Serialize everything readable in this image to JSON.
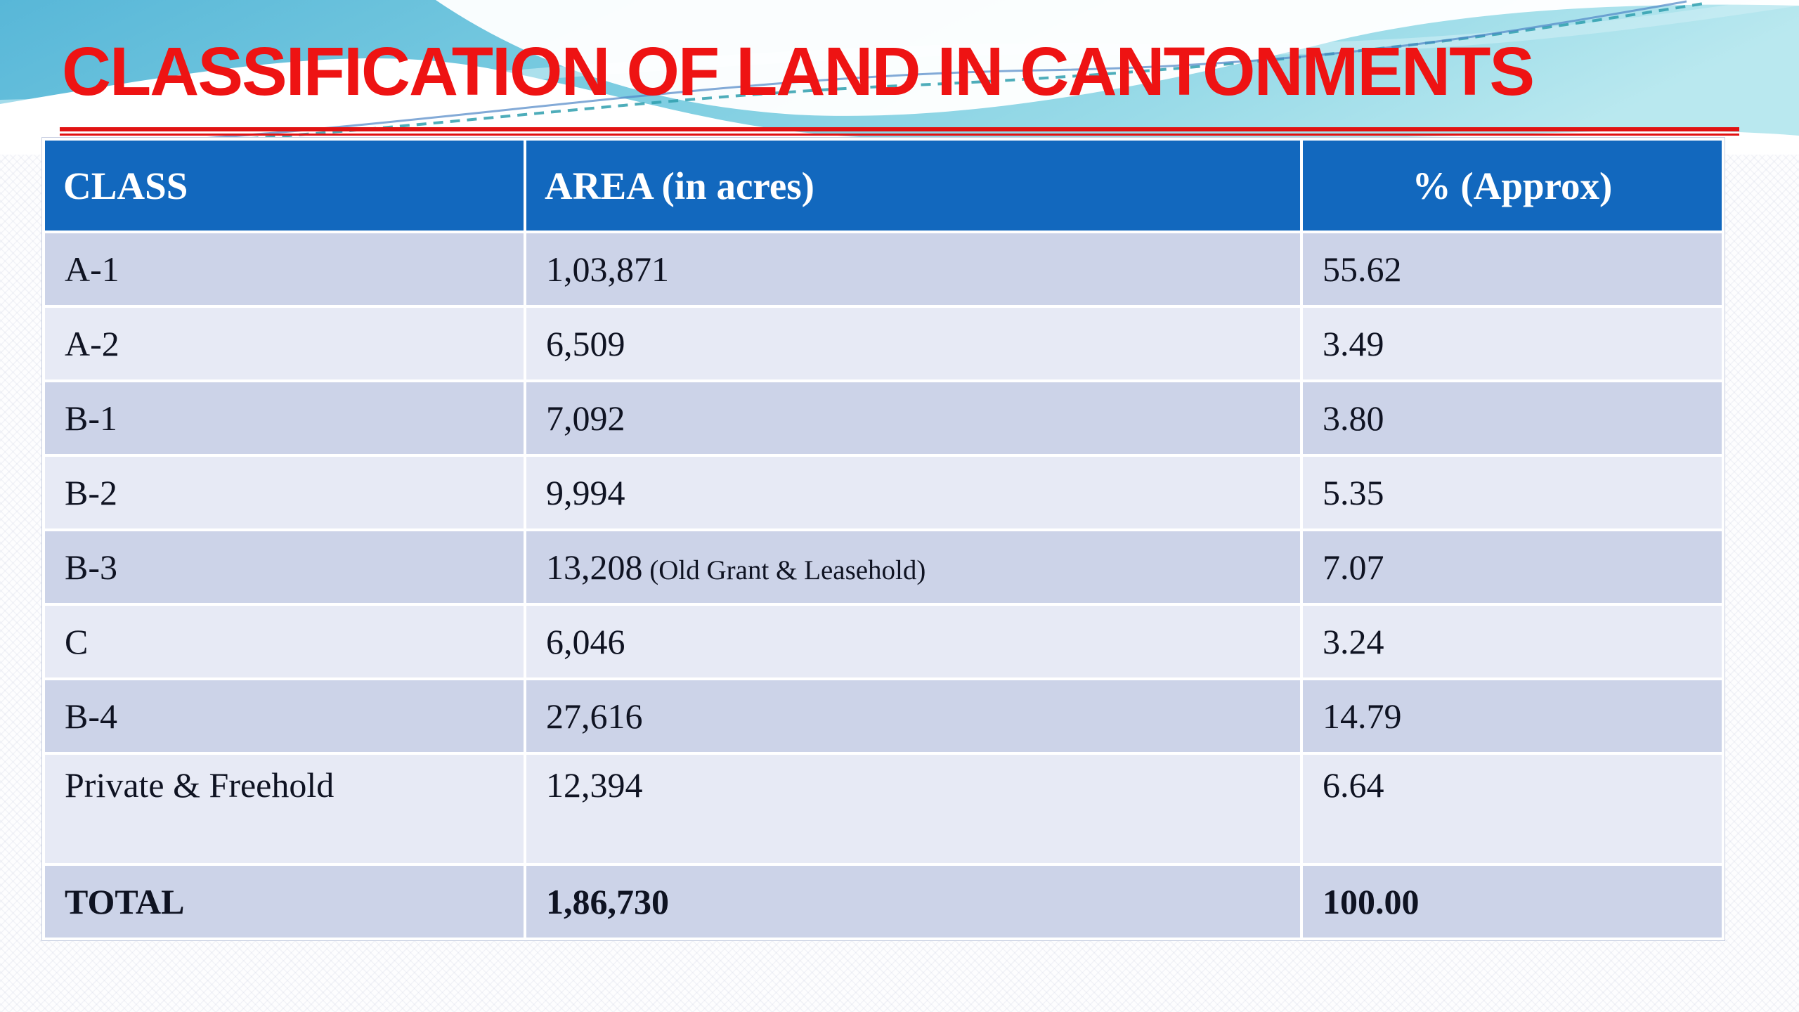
{
  "slide": {
    "title": "CLASSIFICATION OF LAND IN CANTONMENTS",
    "colors": {
      "title_red": "#ee1313",
      "header_blue": "#1268be",
      "row_dark": "#ccd3e8",
      "row_light": "#e7eaf5",
      "header_text": "#ffffff",
      "body_text": "#0f1322",
      "sky_cyan": "#79cbe0"
    }
  },
  "table": {
    "columns": [
      "CLASS",
      "AREA (in acres)",
      "% (Approx)"
    ],
    "rows": [
      {
        "class": "A-1",
        "area": "1,03,871",
        "pct": "55.62"
      },
      {
        "class": "A-2",
        "area": "6,509",
        "pct": "3.49"
      },
      {
        "class": "B-1",
        "area": "7,092",
        "pct": "3.80"
      },
      {
        "class": "B-2",
        "area": "9,994",
        "pct": "5.35"
      },
      {
        "class": "B-3",
        "area": "13,208",
        "area_note": "(Old Grant & Leasehold)",
        "pct": "7.07"
      },
      {
        "class": "C",
        "area": "6,046",
        "pct": "3.24"
      },
      {
        "class": "B-4",
        "area": "27,616",
        "pct": "14.79"
      },
      {
        "class": "Private & Freehold",
        "area": "12,394",
        "pct": "6.64"
      }
    ],
    "total_row": {
      "class": "TOTAL",
      "area": "1,86,730",
      "pct": "100.00"
    }
  },
  "chart_data": {
    "type": "table",
    "title": "CLASSIFICATION OF LAND IN CANTONMENTS",
    "columns": [
      "CLASS",
      "AREA (in acres)",
      "% (Approx)"
    ],
    "rows": [
      [
        "A-1",
        "1,03,871",
        "55.62"
      ],
      [
        "A-2",
        "6,509",
        "3.49"
      ],
      [
        "B-1",
        "7,092",
        "3.80"
      ],
      [
        "B-2",
        "9,994",
        "5.35"
      ],
      [
        "B-3 (Old Grant & Leasehold)",
        "13,208",
        "7.07"
      ],
      [
        "C",
        "6,046",
        "3.24"
      ],
      [
        "B-4",
        "27,616",
        "14.79"
      ],
      [
        "Private & Freehold",
        "12,394",
        "6.64"
      ],
      [
        "TOTAL",
        "1,86,730",
        "100.00"
      ]
    ]
  }
}
